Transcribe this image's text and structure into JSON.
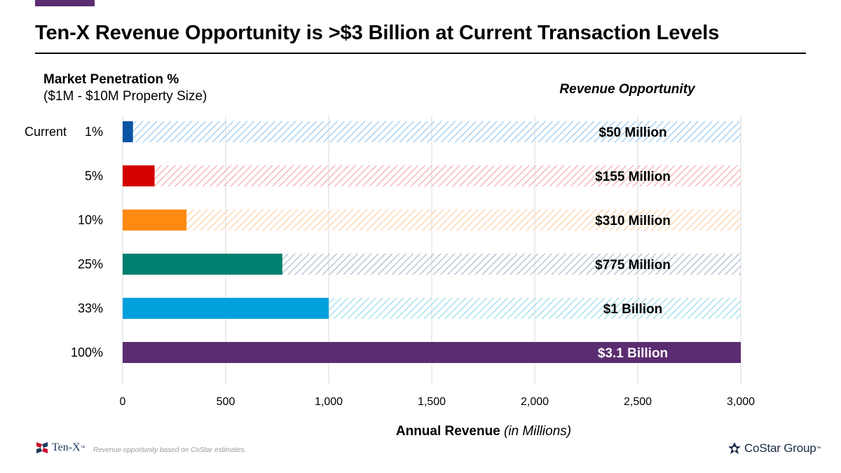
{
  "header": {
    "title": "Ten-X Revenue Opportunity is >$3 Billion at Current Transaction Levels"
  },
  "subhead": {
    "line1": "Market Penetration %",
    "line2": "($1M - $10M Property Size)"
  },
  "revenue_opportunity_heading": "Revenue Opportunity",
  "x_axis_title": {
    "bold": "Annual Revenue",
    "italic": "(in Millions)"
  },
  "footnote": "Revenue opportunity based on CoStar estimates.",
  "logos": {
    "tenx": "Ten-X",
    "costar": "CoStar Group",
    "tm": "™"
  },
  "chart_data": {
    "type": "bar",
    "orientation": "horizontal",
    "categories": [
      "1%",
      "5%",
      "10%",
      "25%",
      "33%",
      "100%"
    ],
    "row_prefix": [
      "Current",
      "",
      "",
      "",
      "",
      ""
    ],
    "values": [
      50,
      155,
      310,
      775,
      1000,
      3100
    ],
    "potential_total": 3000,
    "data_labels": [
      "$50 Million",
      "$155 Million",
      "$310 Million",
      "$775 Million",
      "$1 Billion",
      "$3.1 Billion"
    ],
    "colors": [
      "#0b54a4",
      "#d50000",
      "#ff8a12",
      "#00806e",
      "#00a0dc",
      "#5b2c6f"
    ],
    "hatch_colors": [
      "#a9d2f2",
      "#f5b9b9",
      "#fbd8b4",
      "#b9c6d8",
      "#a8e0ef",
      "#5b2c6f"
    ],
    "x_ticks": [
      0,
      500,
      1000,
      1500,
      2000,
      2500,
      3000
    ],
    "x_tick_labels": [
      "0",
      "500",
      "1,000",
      "1,500",
      "2,000",
      "2,500",
      "3,000"
    ],
    "xlim": [
      0,
      3000
    ],
    "grid": true
  }
}
